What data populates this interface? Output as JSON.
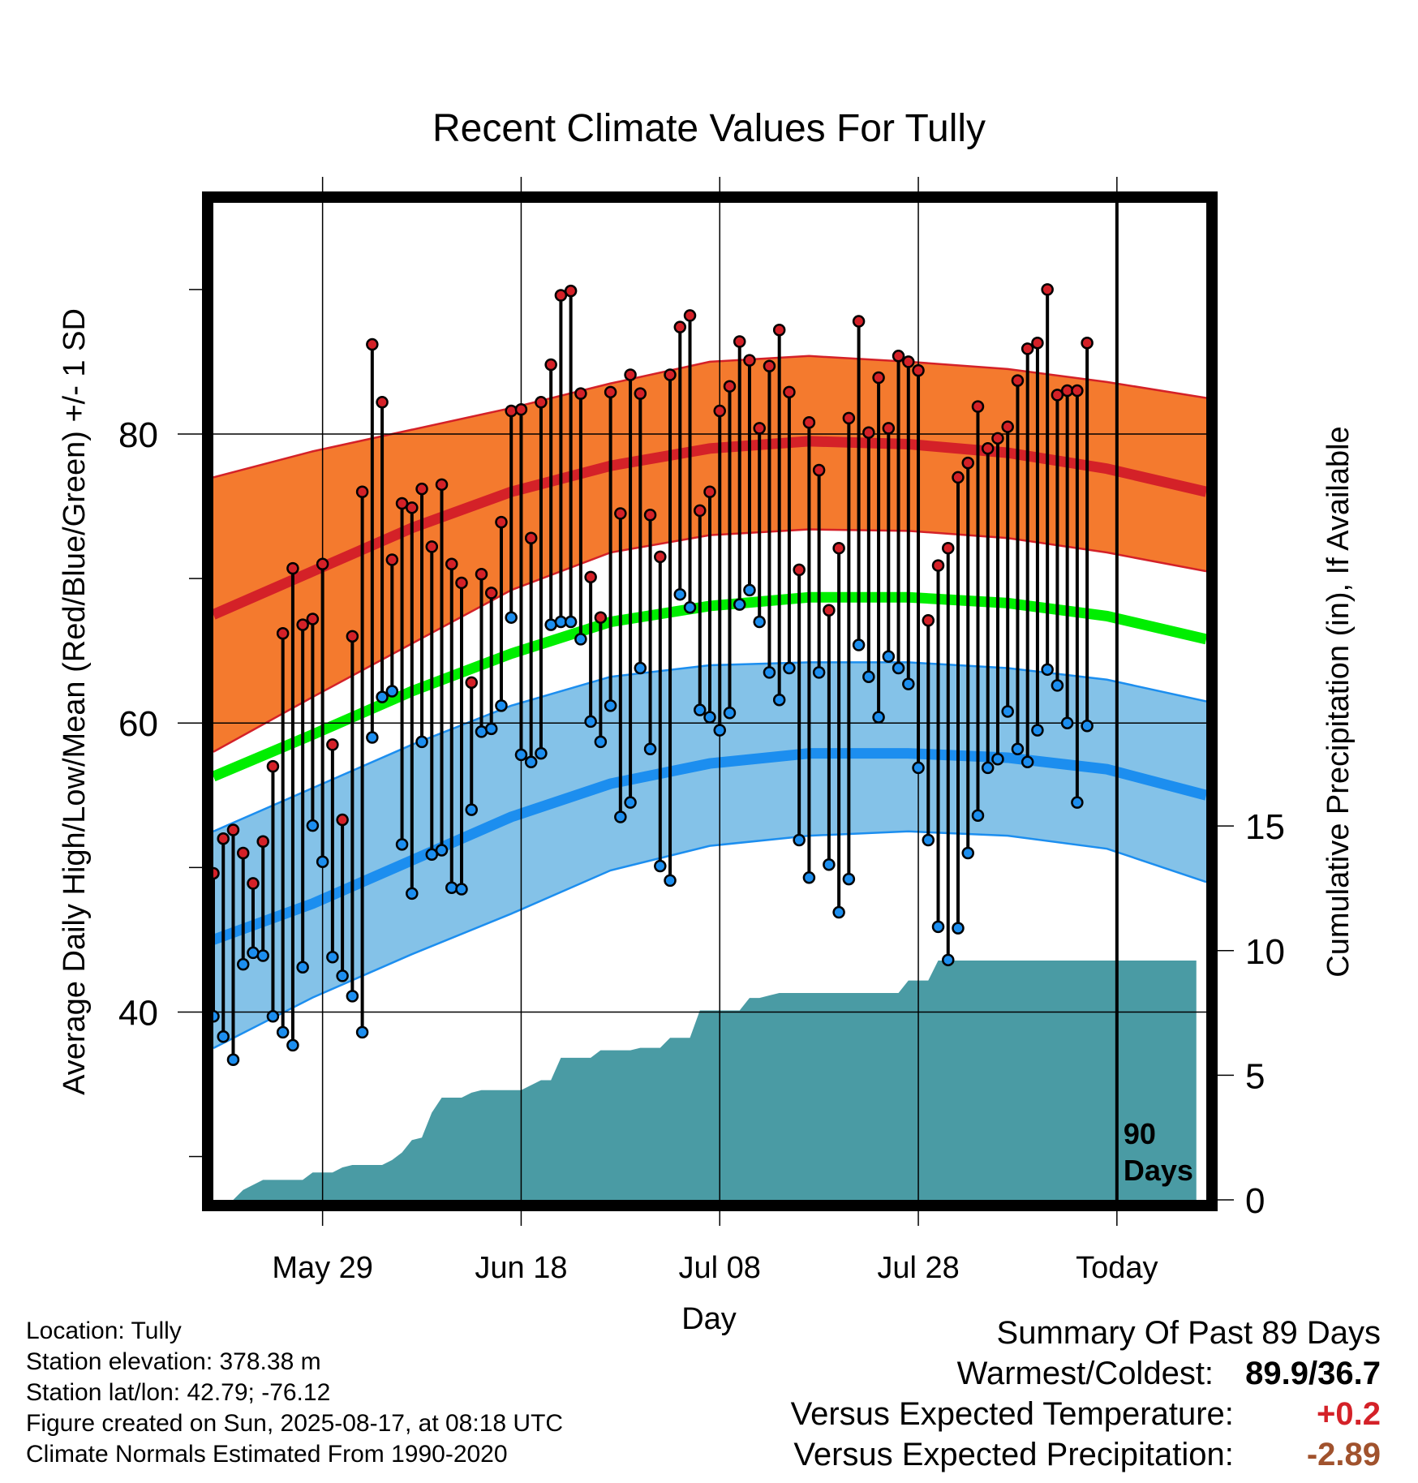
{
  "chart_data": {
    "type": "line",
    "title": "Recent Climate Values For Tully",
    "xlabel": "Day",
    "ylabel_left": "Average Daily High/Low/Mean (Red/Blue/Green) +/- 1 SD",
    "ylabel_right": "Cumulative Precipitation (in), If Available",
    "x_tick_labels": [
      "May 29",
      "Jun 18",
      "Jul 08",
      "Jul 28",
      "Today"
    ],
    "x_tick_days": [
      11,
      31,
      51,
      71,
      91
    ],
    "x_range_days": [
      0,
      100
    ],
    "y_left_ticks": [
      40,
      60,
      80
    ],
    "y_left_range": [
      27,
      96
    ],
    "y_right_ticks": [
      0,
      5,
      10,
      15
    ],
    "y_right_range": [
      0,
      40
    ],
    "today_day": 91,
    "today_label_line1": "90",
    "today_label_line2": "Days",
    "colors": {
      "high_band": "#F47A2E",
      "high_mean": "#D42128",
      "low_band": "#84C2E8",
      "low_mean": "#1C8EEF",
      "mean": "#00EE00",
      "precip": "#4A9BA4",
      "high_point": "#D42128",
      "low_point": "#1C8EEF"
    },
    "normals": {
      "days": [
        0,
        10,
        20,
        30,
        40,
        50,
        60,
        70,
        80,
        90,
        100
      ],
      "high_mean": [
        67.5,
        70.5,
        73.5,
        76,
        77.8,
        79,
        79.5,
        79.3,
        78.7,
        77.6,
        76
      ],
      "high_plus_sd": [
        77,
        78.8,
        80.3,
        81.8,
        83.5,
        85,
        85.4,
        85,
        84.5,
        83.6,
        82.5
      ],
      "high_minus_sd": [
        58,
        61.8,
        65.5,
        69.2,
        71.8,
        73,
        73.4,
        73.3,
        72.8,
        71.8,
        70.5
      ],
      "low_mean": [
        45,
        47.5,
        50.5,
        53.5,
        55.8,
        57.2,
        57.9,
        57.9,
        57.6,
        56.8,
        55
      ],
      "low_plus_sd": [
        52.5,
        55.5,
        58.5,
        61.2,
        63.2,
        64,
        64.2,
        64.2,
        63.8,
        63,
        61.5
      ],
      "low_minus_sd": [
        37.5,
        41,
        44,
        46.8,
        49.8,
        51.5,
        52.2,
        52.5,
        52.2,
        51.3,
        49
      ],
      "mean": [
        56.3,
        59.2,
        62.2,
        64.8,
        67,
        68.1,
        68.7,
        68.7,
        68.3,
        67.4,
        65.8
      ]
    },
    "daily": {
      "days": [
        0,
        1,
        2,
        3,
        4,
        5,
        6,
        7,
        8,
        9,
        10,
        11,
        12,
        13,
        14,
        15,
        16,
        17,
        18,
        19,
        20,
        21,
        22,
        23,
        24,
        25,
        26,
        27,
        28,
        29,
        30,
        31,
        32,
        33,
        34,
        35,
        36,
        37,
        38,
        39,
        40,
        41,
        42,
        43,
        44,
        45,
        46,
        47,
        48,
        49,
        50,
        51,
        52,
        53,
        54,
        55,
        56,
        57,
        58,
        59,
        60,
        61,
        62,
        63,
        64,
        65,
        66,
        67,
        68,
        69,
        70,
        71,
        72,
        73,
        74,
        75,
        76,
        77,
        78,
        79,
        80,
        81,
        82,
        83,
        84,
        85,
        86,
        87,
        88,
        89,
        90
      ],
      "highs": [
        49.6,
        52,
        52.6,
        51,
        48.9,
        51.8,
        57,
        66.2,
        70.7,
        66.8,
        67.2,
        71,
        58.5,
        53.3,
        66,
        76,
        86.2,
        82.2,
        71.3,
        75.2,
        74.9,
        76.2,
        72.2,
        76.5,
        71,
        69.7,
        62.8,
        70.3,
        69,
        73.9,
        81.6,
        81.7,
        72.8,
        82.2,
        84.8,
        89.6,
        89.9,
        82.8,
        70.1,
        67.3,
        82.9,
        74.5,
        84.1,
        82.8,
        74.4,
        71.5,
        84.1,
        87.4,
        88.2,
        74.7,
        76.0,
        81.6,
        83.3,
        86.4,
        85.1,
        80.4,
        84.7,
        87.2,
        82.9,
        70.6,
        80.8,
        77.5,
        67.8,
        72.1,
        81.1,
        87.8,
        80.1,
        83.9,
        80.4,
        85.4,
        85.0,
        84.4,
        67.1,
        70.9,
        72.1,
        77.0,
        78.0,
        81.9,
        79.0,
        79.7,
        80.5,
        83.7,
        85.9,
        86.3,
        90.0,
        82.7,
        83.0,
        83.0,
        86.3
      ],
      "lows": [
        39.7,
        38.3,
        36.7,
        43.3,
        44.1,
        43.9,
        39.7,
        38.6,
        37.7,
        43.1,
        52.9,
        50.4,
        43.8,
        42.5,
        41.1,
        38.6,
        59.0,
        61.8,
        62.2,
        51.6,
        48.2,
        58.7,
        50.9,
        51.2,
        48.6,
        48.5,
        54.0,
        59.4,
        59.6,
        61.2,
        67.3,
        57.8,
        57.3,
        57.9,
        66.8,
        67.0,
        67.0,
        65.8,
        60.1,
        58.7,
        61.2,
        53.5,
        54.5,
        63.8,
        58.2,
        50.1,
        49.1,
        68.9,
        68.0,
        60.9,
        60.4,
        59.5,
        60.7,
        68.2,
        69.2,
        67.0,
        63.5,
        61.6,
        63.8,
        51.9,
        49.3,
        63.5,
        50.2,
        46.9,
        49.2,
        65.4,
        63.2,
        60.4,
        64.6,
        63.8,
        62.7,
        56.9,
        51.9,
        45.9,
        43.6,
        45.8,
        51.0,
        53.6,
        56.9,
        57.5,
        60.8,
        58.2,
        57.3,
        59.5,
        63.7,
        62.6,
        60.0,
        54.5,
        59.8
      ]
    },
    "precip": {
      "days": [
        0,
        2,
        3,
        5,
        6,
        8,
        9,
        10,
        11,
        12,
        13,
        14,
        15,
        16,
        17,
        18,
        19,
        20,
        21,
        22,
        23,
        24,
        25,
        26,
        27,
        28,
        30,
        31,
        32,
        33,
        34,
        35,
        36,
        37,
        38,
        39,
        40,
        41,
        42,
        43,
        44,
        45,
        46,
        47,
        48,
        49,
        50,
        51,
        52,
        53,
        54,
        55,
        56,
        57,
        58,
        59,
        60,
        61,
        62,
        63,
        64,
        65,
        66,
        67,
        68,
        69,
        70,
        71,
        72,
        73,
        74,
        75,
        76,
        77,
        99
      ],
      "values": [
        0,
        0,
        0.4,
        0.8,
        0.8,
        0.8,
        0.8,
        1.1,
        1.1,
        1.1,
        1.3,
        1.4,
        1.4,
        1.4,
        1.4,
        1.6,
        1.9,
        2.4,
        2.5,
        3.5,
        4.1,
        4.1,
        4.1,
        4.3,
        4.4,
        4.4,
        4.4,
        4.4,
        4.6,
        4.8,
        4.8,
        5.7,
        5.7,
        5.7,
        5.7,
        6.0,
        6.0,
        6.0,
        6.0,
        6.1,
        6.1,
        6.1,
        6.5,
        6.5,
        6.5,
        7.6,
        7.6,
        7.6,
        7.6,
        7.6,
        8.1,
        8.1,
        8.2,
        8.3,
        8.3,
        8.3,
        8.3,
        8.3,
        8.3,
        8.3,
        8.3,
        8.3,
        8.3,
        8.3,
        8.3,
        8.3,
        8.8,
        8.8,
        8.8,
        9.6,
        9.6,
        9.6,
        9.6,
        9.6,
        9.6
      ]
    }
  },
  "info": {
    "location": "Location: Tully",
    "elevation": "Station elevation: 378.38 m",
    "latlon": "Station lat/lon: 42.79; -76.12",
    "created": "Figure created on Sun, 2025-08-17, at 08:18 UTC",
    "normals": "Climate Normals Estimated From 1990-2020"
  },
  "summary": {
    "title": "Summary Of Past 89 Days",
    "warm_cold_label": "Warmest/Coldest:",
    "warm_cold_value": "89.9/36.7",
    "temp_label": "Versus Expected Temperature:",
    "temp_value": "+0.2",
    "temp_color": "#D42128",
    "precip_label": "Versus Expected Precipitation:",
    "precip_value": "-2.89",
    "precip_color": "#A0522D"
  }
}
